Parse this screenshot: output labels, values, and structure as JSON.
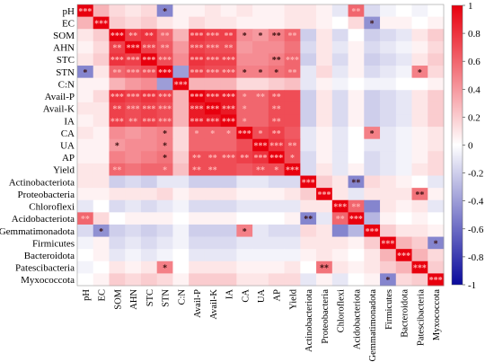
{
  "chart_data": {
    "type": "heatmap",
    "title": "",
    "rows": [
      "pH",
      "EC",
      "SOM",
      "AHN",
      "STC",
      "STN",
      "C:N",
      "Avail-P",
      "Avail-K",
      "IA",
      "CA",
      "UA",
      "AP",
      "Yield",
      "Actinobacteriota",
      "Proteobacteria",
      "Chloroflexi",
      "Acidobacteriota",
      "Gemmatimonadota",
      "Firmicutes",
      "Bacteroidota",
      "Patescibacteria",
      "Myxococcota"
    ],
    "columns": [
      "pH",
      "EC",
      "SOM",
      "AHN",
      "STC",
      "STN",
      "C:N",
      "Avail-P",
      "Avail-K",
      "IA",
      "CA",
      "UA",
      "AP",
      "Yield",
      "Actinobacteriota",
      "Proteobacteria",
      "Chloroflexi",
      "Acidobacteriota",
      "Gemmatimonadota",
      "Firmicutes",
      "Bacteroidota",
      "Patescibacteria",
      "Myxococcota"
    ],
    "colorbar": {
      "min": -1,
      "max": 1,
      "ticks": [
        "1",
        "0.8",
        "0.6",
        "0.4",
        "0.2",
        "0",
        "-0.2",
        "-0.4",
        "-0.6",
        "-0.8",
        "-1"
      ],
      "colors": {
        "low": "#0a0a9c",
        "mid": "#ffffff",
        "high": "#e8000e"
      }
    },
    "values": [
      [
        1,
        0.3,
        0.15,
        0.1,
        0.15,
        -0.5,
        0.05,
        0.05,
        0.1,
        0.05,
        0.1,
        0.05,
        0.05,
        0.1,
        0.1,
        0.05,
        -0.1,
        0.6,
        -0.15,
        -0.05,
        0,
        -0.05,
        0
      ],
      [
        0.3,
        1,
        0.2,
        0.15,
        0.2,
        0.1,
        0.05,
        0.15,
        0.1,
        0.1,
        0.05,
        0.05,
        0.05,
        0.1,
        0.1,
        0.05,
        0,
        0.15,
        -0.45,
        0.05,
        0.05,
        0,
        0.05
      ],
      [
        0.1,
        0.2,
        1,
        0.75,
        0.8,
        0.6,
        0.3,
        0.8,
        0.75,
        0.75,
        0.45,
        0.4,
        0.5,
        0.6,
        -0.2,
        0.1,
        -0.15,
        0,
        -0.2,
        -0.15,
        -0.1,
        0.1,
        0.2
      ],
      [
        0.05,
        0.15,
        0.75,
        1,
        0.75,
        0.65,
        0.4,
        0.75,
        0.7,
        0.7,
        0.4,
        0.45,
        0.45,
        0.55,
        -0.15,
        0.1,
        -0.1,
        0.05,
        -0.15,
        -0.1,
        -0.05,
        0.05,
        0.15
      ],
      [
        0.1,
        0.2,
        0.8,
        0.75,
        1,
        0.7,
        0.45,
        0.8,
        0.75,
        0.75,
        0.45,
        0.45,
        0.5,
        0.6,
        -0.2,
        0.1,
        -0.15,
        0.05,
        -0.2,
        -0.15,
        -0.1,
        0.1,
        0.2
      ],
      [
        -0.5,
        0.1,
        0.6,
        0.65,
        0.7,
        1,
        -0.4,
        0.75,
        0.7,
        0.7,
        0.5,
        0.5,
        0.55,
        0.6,
        -0.1,
        0.15,
        -0.1,
        0.05,
        -0.15,
        -0.1,
        -0.05,
        0.5,
        0.15
      ],
      [
        0.05,
        0.05,
        0.3,
        0.4,
        0.45,
        -0.4,
        1,
        0.3,
        0.3,
        0.3,
        0.15,
        0.15,
        0.2,
        0.25,
        -0.1,
        0.05,
        -0.05,
        0,
        -0.05,
        -0.05,
        0,
        0,
        0.05
      ],
      [
        0.05,
        0.15,
        0.8,
        0.75,
        0.8,
        0.75,
        0.3,
        1,
        0.9,
        0.9,
        0.6,
        0.6,
        0.7,
        0.7,
        -0.2,
        0.1,
        -0.15,
        0.05,
        -0.2,
        -0.15,
        -0.1,
        0.1,
        0.2
      ],
      [
        0.1,
        0.1,
        0.75,
        0.7,
        0.75,
        0.7,
        0.3,
        0.9,
        1,
        0.9,
        0.6,
        0.6,
        0.7,
        0.7,
        -0.2,
        0.1,
        -0.15,
        0.05,
        -0.2,
        -0.15,
        -0.1,
        0.1,
        0.2
      ],
      [
        0.05,
        0.1,
        0.75,
        0.7,
        0.75,
        0.7,
        0.3,
        0.9,
        0.9,
        1,
        0.6,
        0.6,
        0.7,
        0.7,
        -0.2,
        0.1,
        -0.15,
        0.05,
        -0.2,
        -0.15,
        -0.1,
        0.1,
        0.2
      ],
      [
        0.1,
        0.05,
        0.45,
        0.4,
        0.45,
        0.5,
        0.15,
        0.6,
        0.6,
        0.6,
        1,
        0.7,
        0.75,
        0.65,
        -0.1,
        0.05,
        -0.1,
        0,
        0.5,
        -0.1,
        -0.05,
        0.05,
        0.1
      ],
      [
        0.05,
        0.05,
        0.4,
        0.45,
        0.45,
        0.5,
        0.15,
        0.6,
        0.6,
        0.6,
        0.7,
        1,
        0.8,
        0.7,
        -0.1,
        0.05,
        -0.1,
        0,
        -0.1,
        -0.1,
        -0.05,
        0.05,
        0.1
      ],
      [
        0.05,
        0.05,
        0.5,
        0.45,
        0.5,
        0.55,
        0.2,
        0.7,
        0.7,
        0.7,
        0.75,
        0.8,
        1,
        0.7,
        -0.15,
        0.05,
        -0.1,
        0,
        -0.15,
        -0.1,
        -0.05,
        0.05,
        0.15
      ],
      [
        0.1,
        0.1,
        0.6,
        0.55,
        0.6,
        0.6,
        0.25,
        0.7,
        0.7,
        0.7,
        0.65,
        0.7,
        0.7,
        1,
        -0.15,
        0.1,
        -0.1,
        0.05,
        -0.15,
        -0.1,
        -0.05,
        0.1,
        0.15
      ],
      [
        0.1,
        0.1,
        -0.2,
        -0.15,
        -0.2,
        -0.1,
        -0.1,
        -0.2,
        -0.2,
        -0.2,
        -0.1,
        -0.1,
        -0.15,
        -0.15,
        1,
        0.2,
        0.1,
        -0.5,
        0.15,
        0.1,
        0.05,
        0,
        -0.1
      ],
      [
        0.05,
        0.05,
        0.1,
        0.1,
        0.1,
        0.15,
        0.05,
        0.1,
        0.1,
        0.1,
        0.05,
        0.05,
        0.05,
        0.1,
        0.2,
        1,
        0.1,
        -0.1,
        0.1,
        0.1,
        0.1,
        0.55,
        0.05
      ],
      [
        -0.1,
        0,
        -0.15,
        -0.1,
        -0.15,
        -0.1,
        -0.05,
        -0.15,
        -0.15,
        -0.15,
        -0.1,
        -0.1,
        -0.1,
        -0.1,
        0.1,
        0.1,
        1,
        0.6,
        -0.5,
        0.1,
        0.05,
        0.1,
        -0.1
      ],
      [
        0.6,
        0.15,
        0,
        0.05,
        0.05,
        0.05,
        0,
        0.05,
        0.05,
        0.05,
        0,
        0,
        0,
        0.05,
        -0.5,
        -0.1,
        0.6,
        1,
        -0.3,
        0.05,
        0,
        0.05,
        0
      ],
      [
        -0.15,
        -0.45,
        -0.2,
        -0.15,
        -0.2,
        -0.15,
        -0.05,
        -0.2,
        -0.2,
        -0.2,
        0.5,
        -0.1,
        -0.15,
        -0.15,
        0.15,
        0.1,
        -0.5,
        -0.3,
        1,
        0.2,
        0.1,
        0.1,
        0.05
      ],
      [
        -0.05,
        0.05,
        -0.15,
        -0.1,
        -0.15,
        -0.1,
        -0.05,
        -0.15,
        -0.15,
        -0.15,
        -0.1,
        -0.1,
        -0.1,
        -0.1,
        0.1,
        0.1,
        0.1,
        0.05,
        0.2,
        1,
        0.3,
        0.2,
        -0.5
      ],
      [
        0,
        0.05,
        -0.1,
        -0.05,
        -0.1,
        -0.05,
        0,
        -0.1,
        -0.1,
        -0.1,
        -0.05,
        -0.05,
        -0.05,
        -0.05,
        0.05,
        0.1,
        0.05,
        0,
        0.1,
        0.3,
        1,
        0.3,
        0.15
      ],
      [
        -0.05,
        0,
        0.1,
        0.05,
        0.1,
        0.5,
        0,
        0.1,
        0.1,
        0.1,
        0.05,
        0.05,
        0.05,
        0.1,
        0,
        0.55,
        0.1,
        0.05,
        0.1,
        0.2,
        0.3,
        1,
        0.2
      ],
      [
        0,
        0.05,
        0.2,
        0.15,
        0.2,
        0.15,
        0.05,
        0.2,
        0.2,
        0.2,
        0.1,
        0.1,
        0.15,
        0.15,
        -0.1,
        0.05,
        -0.1,
        0,
        0.05,
        -0.5,
        0.15,
        0.2,
        1
      ]
    ],
    "significance": [
      [
        "***",
        "",
        "",
        "",
        "",
        "*",
        "",
        "",
        "",
        "",
        "",
        "",
        "",
        "",
        "",
        "",
        "",
        "**",
        "",
        "",
        "",
        "",
        ""
      ],
      [
        "",
        "***",
        "",
        "",
        "",
        "",
        "",
        "",
        "",
        "",
        "",
        "",
        "",
        "",
        "",
        "",
        "",
        "",
        "*",
        "",
        "",
        "",
        ""
      ],
      [
        "",
        "",
        "***",
        "**",
        "**",
        "**",
        "",
        "***",
        "***",
        "**",
        "*",
        "*",
        "**",
        "**",
        "",
        "",
        "",
        "",
        "",
        "",
        "",
        "",
        ""
      ],
      [
        "",
        "",
        "**",
        "***",
        "***",
        "**",
        "",
        "***",
        "***",
        "**",
        "",
        "",
        "",
        "",
        "",
        "",
        "",
        "",
        "",
        "",
        "",
        "",
        ""
      ],
      [
        "",
        "",
        "***",
        "***",
        "***",
        "***",
        "",
        "***",
        "***",
        "***",
        "",
        "",
        "**",
        "***",
        "",
        "",
        "",
        "",
        "",
        "",
        "",
        "",
        ""
      ],
      [
        "*",
        "",
        "**",
        "***",
        "***",
        "***",
        "",
        "***",
        "***",
        "***",
        "*",
        "*",
        "*",
        "**",
        "",
        "",
        "",
        "",
        "",
        "",
        "",
        "*",
        ""
      ],
      [
        "",
        "",
        "",
        "",
        "",
        "",
        "***",
        "",
        "",
        "",
        "",
        "",
        "",
        "",
        "",
        "",
        "",
        "",
        "",
        "",
        "",
        "",
        ""
      ],
      [
        "",
        "",
        "***",
        "***",
        "***",
        "***",
        "",
        "***",
        "***",
        "***",
        "*",
        "**",
        "**",
        "",
        "",
        "",
        "",
        "",
        "",
        "",
        "",
        "",
        ""
      ],
      [
        "",
        "",
        "**",
        "***",
        "***",
        "***",
        "",
        "***",
        "***",
        "***",
        "*",
        "",
        "**",
        "",
        "",
        "",
        "",
        "",
        "",
        "",
        "",
        "",
        ""
      ],
      [
        "",
        "",
        "***",
        "**",
        "***",
        "***",
        "",
        "***",
        "***",
        "***",
        "*",
        "",
        "**",
        "",
        "",
        "",
        "",
        "",
        "",
        "",
        "",
        "",
        ""
      ],
      [
        "",
        "",
        "",
        "",
        "",
        "*",
        "",
        "*",
        "*",
        "*",
        "***",
        "*",
        "**",
        "",
        "",
        "",
        "",
        "",
        "*",
        "",
        "",
        "",
        ""
      ],
      [
        "",
        "",
        "*",
        "",
        "",
        "*",
        "",
        "",
        "",
        "",
        "",
        "***",
        "***",
        "**",
        "",
        "",
        "",
        "",
        "",
        "",
        "",
        "",
        ""
      ],
      [
        "",
        "",
        "",
        "",
        "",
        "*",
        "",
        "**",
        "**",
        "***",
        "**",
        "***",
        "***",
        "*",
        "",
        "",
        "",
        "",
        "",
        "",
        "",
        "",
        ""
      ],
      [
        "",
        "",
        "**",
        "",
        "",
        "*",
        "",
        "**",
        "**",
        "",
        "",
        "**",
        "*",
        "***",
        "",
        "",
        "",
        "",
        "",
        "",
        "",
        "",
        ""
      ],
      [
        "",
        "",
        "",
        "",
        "",
        "",
        "",
        "",
        "",
        "",
        "",
        "",
        "",
        "",
        "***",
        "",
        "",
        "**",
        "",
        "",
        "",
        "",
        ""
      ],
      [
        "",
        "",
        "",
        "",
        "",
        "",
        "",
        "",
        "",
        "",
        "",
        "",
        "",
        "",
        "",
        "***",
        "",
        "",
        "",
        "",
        "",
        "**",
        ""
      ],
      [
        "",
        "",
        "",
        "",
        "",
        "",
        "",
        "",
        "",
        "",
        "",
        "",
        "",
        "",
        "",
        "",
        "***",
        "**",
        "",
        "",
        "",
        "",
        ""
      ],
      [
        "**",
        "",
        "",
        "",
        "",
        "",
        "",
        "",
        "",
        "",
        "",
        "",
        "",
        "",
        "**",
        "",
        "**",
        "***",
        "",
        "",
        "",
        "",
        ""
      ],
      [
        "",
        "*",
        "",
        "",
        "",
        "",
        "",
        "",
        "",
        "",
        "*",
        "",
        "",
        "",
        "",
        "",
        "",
        "",
        "***",
        "",
        "",
        "",
        ""
      ],
      [
        "",
        "",
        "",
        "",
        "",
        "",
        "",
        "",
        "",
        "",
        "",
        "",
        "",
        "",
        "",
        "",
        "",
        "",
        "",
        "***",
        "",
        "",
        "*"
      ],
      [
        "",
        "",
        "",
        "",
        "",
        "",
        "",
        "",
        "",
        "",
        "",
        "",
        "",
        "",
        "",
        "",
        "",
        "",
        "",
        "",
        "***",
        "",
        ""
      ],
      [
        "",
        "",
        "",
        "",
        "",
        "*",
        "",
        "",
        "",
        "",
        "",
        "",
        "",
        "",
        "",
        "**",
        "",
        "",
        "",
        "",
        "",
        "***",
        ""
      ],
      [
        "",
        "",
        "",
        "",
        "",
        "",
        "",
        "",
        "",
        "",
        "",
        "",
        "",
        "",
        "",
        "",
        "",
        "",
        "",
        "*",
        "",
        "",
        "***"
      ]
    ]
  }
}
